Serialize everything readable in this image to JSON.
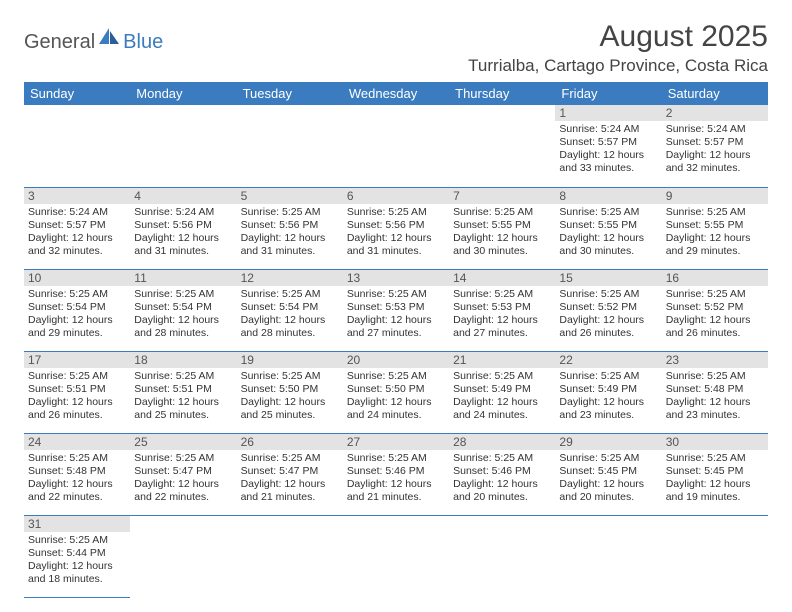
{
  "logo": {
    "part1": "General",
    "part2": "Blue"
  },
  "title": "August 2025",
  "location": "Turrialba, Cartago Province, Costa Rica",
  "header_bg": "#3b7bbf",
  "weekdays": [
    "Sunday",
    "Monday",
    "Tuesday",
    "Wednesday",
    "Thursday",
    "Friday",
    "Saturday"
  ],
  "weeks": [
    [
      null,
      null,
      null,
      null,
      null,
      {
        "n": "1",
        "sr": "Sunrise: 5:24 AM",
        "ss": "Sunset: 5:57 PM",
        "d1": "Daylight: 12 hours",
        "d2": "and 33 minutes."
      },
      {
        "n": "2",
        "sr": "Sunrise: 5:24 AM",
        "ss": "Sunset: 5:57 PM",
        "d1": "Daylight: 12 hours",
        "d2": "and 32 minutes."
      }
    ],
    [
      {
        "n": "3",
        "sr": "Sunrise: 5:24 AM",
        "ss": "Sunset: 5:57 PM",
        "d1": "Daylight: 12 hours",
        "d2": "and 32 minutes."
      },
      {
        "n": "4",
        "sr": "Sunrise: 5:24 AM",
        "ss": "Sunset: 5:56 PM",
        "d1": "Daylight: 12 hours",
        "d2": "and 31 minutes."
      },
      {
        "n": "5",
        "sr": "Sunrise: 5:25 AM",
        "ss": "Sunset: 5:56 PM",
        "d1": "Daylight: 12 hours",
        "d2": "and 31 minutes."
      },
      {
        "n": "6",
        "sr": "Sunrise: 5:25 AM",
        "ss": "Sunset: 5:56 PM",
        "d1": "Daylight: 12 hours",
        "d2": "and 31 minutes."
      },
      {
        "n": "7",
        "sr": "Sunrise: 5:25 AM",
        "ss": "Sunset: 5:55 PM",
        "d1": "Daylight: 12 hours",
        "d2": "and 30 minutes."
      },
      {
        "n": "8",
        "sr": "Sunrise: 5:25 AM",
        "ss": "Sunset: 5:55 PM",
        "d1": "Daylight: 12 hours",
        "d2": "and 30 minutes."
      },
      {
        "n": "9",
        "sr": "Sunrise: 5:25 AM",
        "ss": "Sunset: 5:55 PM",
        "d1": "Daylight: 12 hours",
        "d2": "and 29 minutes."
      }
    ],
    [
      {
        "n": "10",
        "sr": "Sunrise: 5:25 AM",
        "ss": "Sunset: 5:54 PM",
        "d1": "Daylight: 12 hours",
        "d2": "and 29 minutes."
      },
      {
        "n": "11",
        "sr": "Sunrise: 5:25 AM",
        "ss": "Sunset: 5:54 PM",
        "d1": "Daylight: 12 hours",
        "d2": "and 28 minutes."
      },
      {
        "n": "12",
        "sr": "Sunrise: 5:25 AM",
        "ss": "Sunset: 5:54 PM",
        "d1": "Daylight: 12 hours",
        "d2": "and 28 minutes."
      },
      {
        "n": "13",
        "sr": "Sunrise: 5:25 AM",
        "ss": "Sunset: 5:53 PM",
        "d1": "Daylight: 12 hours",
        "d2": "and 27 minutes."
      },
      {
        "n": "14",
        "sr": "Sunrise: 5:25 AM",
        "ss": "Sunset: 5:53 PM",
        "d1": "Daylight: 12 hours",
        "d2": "and 27 minutes."
      },
      {
        "n": "15",
        "sr": "Sunrise: 5:25 AM",
        "ss": "Sunset: 5:52 PM",
        "d1": "Daylight: 12 hours",
        "d2": "and 26 minutes."
      },
      {
        "n": "16",
        "sr": "Sunrise: 5:25 AM",
        "ss": "Sunset: 5:52 PM",
        "d1": "Daylight: 12 hours",
        "d2": "and 26 minutes."
      }
    ],
    [
      {
        "n": "17",
        "sr": "Sunrise: 5:25 AM",
        "ss": "Sunset: 5:51 PM",
        "d1": "Daylight: 12 hours",
        "d2": "and 26 minutes."
      },
      {
        "n": "18",
        "sr": "Sunrise: 5:25 AM",
        "ss": "Sunset: 5:51 PM",
        "d1": "Daylight: 12 hours",
        "d2": "and 25 minutes."
      },
      {
        "n": "19",
        "sr": "Sunrise: 5:25 AM",
        "ss": "Sunset: 5:50 PM",
        "d1": "Daylight: 12 hours",
        "d2": "and 25 minutes."
      },
      {
        "n": "20",
        "sr": "Sunrise: 5:25 AM",
        "ss": "Sunset: 5:50 PM",
        "d1": "Daylight: 12 hours",
        "d2": "and 24 minutes."
      },
      {
        "n": "21",
        "sr": "Sunrise: 5:25 AM",
        "ss": "Sunset: 5:49 PM",
        "d1": "Daylight: 12 hours",
        "d2": "and 24 minutes."
      },
      {
        "n": "22",
        "sr": "Sunrise: 5:25 AM",
        "ss": "Sunset: 5:49 PM",
        "d1": "Daylight: 12 hours",
        "d2": "and 23 minutes."
      },
      {
        "n": "23",
        "sr": "Sunrise: 5:25 AM",
        "ss": "Sunset: 5:48 PM",
        "d1": "Daylight: 12 hours",
        "d2": "and 23 minutes."
      }
    ],
    [
      {
        "n": "24",
        "sr": "Sunrise: 5:25 AM",
        "ss": "Sunset: 5:48 PM",
        "d1": "Daylight: 12 hours",
        "d2": "and 22 minutes."
      },
      {
        "n": "25",
        "sr": "Sunrise: 5:25 AM",
        "ss": "Sunset: 5:47 PM",
        "d1": "Daylight: 12 hours",
        "d2": "and 22 minutes."
      },
      {
        "n": "26",
        "sr": "Sunrise: 5:25 AM",
        "ss": "Sunset: 5:47 PM",
        "d1": "Daylight: 12 hours",
        "d2": "and 21 minutes."
      },
      {
        "n": "27",
        "sr": "Sunrise: 5:25 AM",
        "ss": "Sunset: 5:46 PM",
        "d1": "Daylight: 12 hours",
        "d2": "and 21 minutes."
      },
      {
        "n": "28",
        "sr": "Sunrise: 5:25 AM",
        "ss": "Sunset: 5:46 PM",
        "d1": "Daylight: 12 hours",
        "d2": "and 20 minutes."
      },
      {
        "n": "29",
        "sr": "Sunrise: 5:25 AM",
        "ss": "Sunset: 5:45 PM",
        "d1": "Daylight: 12 hours",
        "d2": "and 20 minutes."
      },
      {
        "n": "30",
        "sr": "Sunrise: 5:25 AM",
        "ss": "Sunset: 5:45 PM",
        "d1": "Daylight: 12 hours",
        "d2": "and 19 minutes."
      }
    ],
    [
      {
        "n": "31",
        "sr": "Sunrise: 5:25 AM",
        "ss": "Sunset: 5:44 PM",
        "d1": "Daylight: 12 hours",
        "d2": "and 18 minutes."
      },
      null,
      null,
      null,
      null,
      null,
      null
    ]
  ]
}
